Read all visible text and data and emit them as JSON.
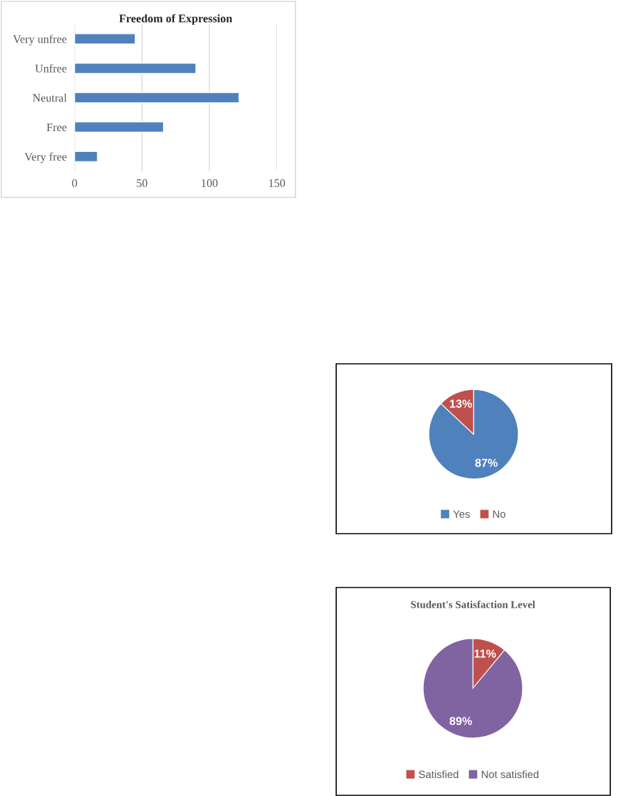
{
  "chart_data": [
    {
      "type": "bar",
      "orientation": "horizontal",
      "title": "Freedom of Expression",
      "categories": [
        "Very unfree",
        "Unfree",
        "Neutral",
        "Free",
        "Very free"
      ],
      "values": [
        45,
        90,
        122,
        66,
        17
      ],
      "color": "#4f81bd",
      "xlim": [
        0,
        150
      ],
      "xticks": [
        0,
        50,
        100,
        150
      ],
      "grid": "x"
    },
    {
      "type": "pie",
      "categories": [
        "Yes",
        "No"
      ],
      "values": [
        87,
        13
      ],
      "colors": [
        "#4f81bd",
        "#c0504d"
      ],
      "value_labels": [
        "87%",
        "13%"
      ],
      "legend": "bottom"
    },
    {
      "type": "pie",
      "title": "Student's Satisfaction Level",
      "categories": [
        "Satisfied",
        "Not satisfied"
      ],
      "values": [
        11,
        89
      ],
      "colors": [
        "#c0504d",
        "#8064a2"
      ],
      "value_labels": [
        "11%",
        "89%"
      ],
      "legend": "bottom"
    }
  ]
}
